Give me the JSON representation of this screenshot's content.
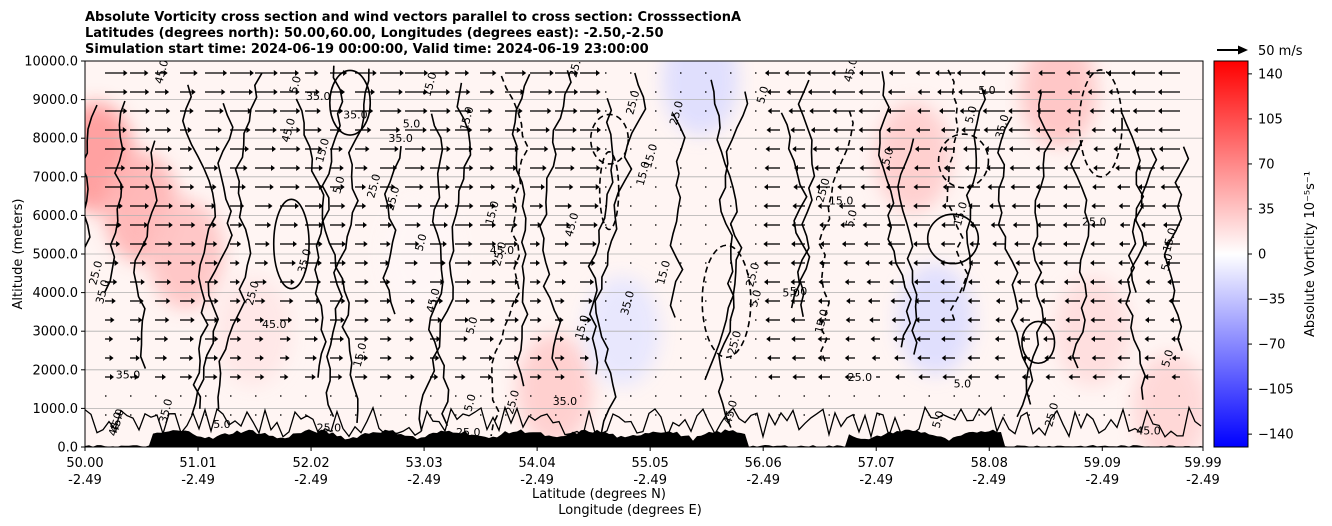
{
  "chart_data": {
    "type": "heatmap",
    "title_lines": [
      "Absolute Vorticity cross section and wind vectors parallel to cross section: CrosssectionA",
      "Latitudes (degrees north): 50.00,60.00, Longitudes (degrees east): -2.50,-2.50",
      "Simulation start time: 2024-06-19 00:00:00, Valid time: 2024-06-19 23:00:00"
    ],
    "ylabel": "Altitude (meters)",
    "xlabel_lines": [
      "Latitude (degrees N)",
      "Longitude (degrees E)"
    ],
    "y_ticks": [
      "0.0",
      "1000.0",
      "2000.0",
      "3000.0",
      "4000.0",
      "5000.0",
      "6000.0",
      "7000.0",
      "8000.0",
      "9000.0",
      "10000.0"
    ],
    "ylim": [
      0,
      10000
    ],
    "x_ticks": [
      {
        "lat": "50.00",
        "lon": "-2.49"
      },
      {
        "lat": "51.01",
        "lon": "-2.49"
      },
      {
        "lat": "52.02",
        "lon": "-2.49"
      },
      {
        "lat": "53.03",
        "lon": "-2.49"
      },
      {
        "lat": "54.04",
        "lon": "-2.49"
      },
      {
        "lat": "55.05",
        "lon": "-2.49"
      },
      {
        "lat": "56.06",
        "lon": "-2.49"
      },
      {
        "lat": "57.07",
        "lon": "-2.49"
      },
      {
        "lat": "58.08",
        "lon": "-2.49"
      },
      {
        "lat": "59.09",
        "lon": "-2.49"
      },
      {
        "lat": "59.99",
        "lon": "-2.49"
      }
    ],
    "xlim": [
      50.0,
      59.99
    ],
    "grid": "horizontal",
    "colorbar": {
      "label": "Absolute Vorticity 10⁻⁵s⁻¹",
      "ticks": [
        "140",
        "105",
        "70",
        "35",
        "0",
        "−35",
        "−70",
        "−105",
        "−140"
      ],
      "range": [
        -150,
        150
      ],
      "colors": [
        "#0000ff",
        "#ffffff",
        "#ff0000"
      ]
    },
    "quiver_key": "50 m/s",
    "contour_labels": [
      "5.0",
      "15.0",
      "25.0",
      "35.0",
      "45.0",
      "−5.0"
    ],
    "vorticity_regions": [
      {
        "lat": 50.1,
        "alt": 7500,
        "value": 60
      },
      {
        "lat": 50.5,
        "alt": 6200,
        "value": 45
      },
      {
        "lat": 50.9,
        "alt": 5000,
        "value": 35
      },
      {
        "lat": 51.5,
        "alt": 3000,
        "value": 15
      },
      {
        "lat": 53.0,
        "alt": 5000,
        "value": 5
      },
      {
        "lat": 54.2,
        "alt": 1500,
        "value": 30
      },
      {
        "lat": 54.8,
        "alt": 3000,
        "value": -15
      },
      {
        "lat": 55.5,
        "alt": 9500,
        "value": -20
      },
      {
        "lat": 57.4,
        "alt": 7500,
        "value": 30
      },
      {
        "lat": 57.6,
        "alt": 3300,
        "value": -20
      },
      {
        "lat": 58.7,
        "alt": 9200,
        "value": 35
      },
      {
        "lat": 59.0,
        "alt": 3000,
        "value": 20
      },
      {
        "lat": 59.7,
        "alt": 1000,
        "value": 25
      }
    ],
    "wind_direction_regions": [
      {
        "lat_range": [
          50.0,
          54.5
        ],
        "direction": "toward increasing latitude"
      },
      {
        "lat_range": [
          56.0,
          59.99
        ],
        "direction": "toward decreasing latitude"
      }
    ]
  }
}
